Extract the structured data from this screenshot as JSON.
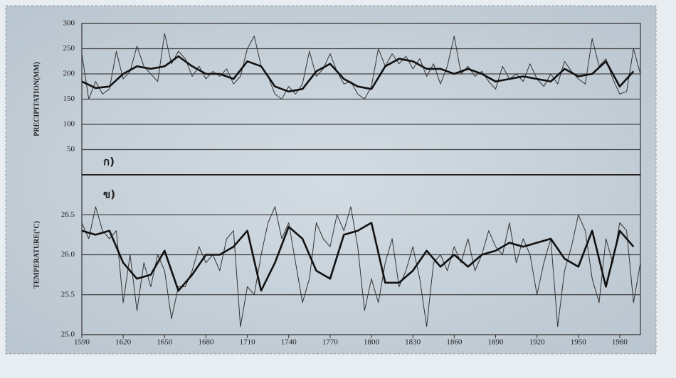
{
  "chart_data": [
    {
      "type": "line",
      "ylabel": "PRECIPITATION(MM)",
      "panel_label": "ก)",
      "xlim": [
        1590,
        1995
      ],
      "ylim": [
        0,
        300
      ],
      "yticks": [
        300,
        250,
        200,
        150,
        100,
        50
      ],
      "grid": true,
      "series": [
        {
          "color": "#333333",
          "width": 1,
          "x": [
            1590,
            1595,
            1600,
            1605,
            1610,
            1615,
            1620,
            1625,
            1630,
            1635,
            1640,
            1645,
            1650,
            1655,
            1660,
            1665,
            1670,
            1675,
            1680,
            1685,
            1690,
            1695,
            1700,
            1705,
            1710,
            1715,
            1720,
            1725,
            1730,
            1735,
            1740,
            1745,
            1750,
            1755,
            1760,
            1765,
            1770,
            1775,
            1780,
            1785,
            1790,
            1795,
            1800,
            1805,
            1810,
            1815,
            1820,
            1825,
            1830,
            1835,
            1840,
            1845,
            1850,
            1855,
            1860,
            1865,
            1870,
            1875,
            1880,
            1885,
            1890,
            1895,
            1900,
            1905,
            1910,
            1915,
            1920,
            1925,
            1930,
            1935,
            1940,
            1945,
            1950,
            1955,
            1960,
            1965,
            1970,
            1975,
            1980,
            1985,
            1990,
            1995
          ],
          "values": [
            240,
            150,
            185,
            160,
            170,
            245,
            190,
            205,
            255,
            215,
            200,
            185,
            280,
            220,
            245,
            230,
            195,
            215,
            190,
            205,
            195,
            210,
            180,
            195,
            250,
            275,
            215,
            195,
            160,
            150,
            175,
            160,
            180,
            245,
            195,
            210,
            240,
            205,
            180,
            185,
            160,
            150,
            175,
            250,
            215,
            240,
            220,
            235,
            210,
            230,
            195,
            220,
            180,
            215,
            275,
            200,
            215,
            195,
            205,
            185,
            170,
            215,
            190,
            200,
            185,
            220,
            190,
            175,
            200,
            180,
            225,
            205,
            190,
            180,
            270,
            215,
            230,
            190,
            160,
            165,
            250,
            200
          ]
        },
        {
          "color": "#111111",
          "width": 2.6,
          "x": [
            1590,
            1600,
            1610,
            1620,
            1630,
            1640,
            1650,
            1660,
            1670,
            1680,
            1690,
            1700,
            1710,
            1720,
            1730,
            1740,
            1750,
            1760,
            1770,
            1780,
            1790,
            1800,
            1810,
            1820,
            1830,
            1840,
            1850,
            1860,
            1870,
            1880,
            1890,
            1900,
            1910,
            1920,
            1930,
            1940,
            1950,
            1960,
            1970,
            1980,
            1990
          ],
          "values": [
            185,
            172,
            175,
            200,
            215,
            210,
            215,
            235,
            215,
            200,
            200,
            190,
            225,
            215,
            175,
            165,
            170,
            205,
            220,
            190,
            175,
            170,
            215,
            230,
            225,
            210,
            210,
            200,
            210,
            200,
            185,
            190,
            195,
            190,
            185,
            210,
            195,
            200,
            225,
            175,
            205
          ]
        }
      ]
    },
    {
      "type": "line",
      "ylabel": "TEMPERATURE(°C)",
      "panel_label": "ข)",
      "xlim": [
        1590,
        1995
      ],
      "ylim": [
        25,
        27
      ],
      "yticks": [
        {
          "value": 26.5,
          "label": "26.5"
        },
        {
          "value": 26,
          "label": "26.0"
        },
        {
          "value": 25.5,
          "label": "25.5"
        },
        {
          "value": 25,
          "label": "25.0"
        }
      ],
      "xticks": [
        1590,
        1620,
        1650,
        1680,
        1710,
        1740,
        1770,
        1800,
        1830,
        1860,
        1890,
        1920,
        1950,
        1980
      ],
      "grid": true,
      "series": [
        {
          "color": "#333333",
          "width": 1,
          "x": [
            1590,
            1595,
            1600,
            1605,
            1610,
            1615,
            1620,
            1625,
            1630,
            1635,
            1640,
            1645,
            1650,
            1655,
            1660,
            1665,
            1670,
            1675,
            1680,
            1685,
            1690,
            1695,
            1700,
            1705,
            1710,
            1715,
            1720,
            1725,
            1730,
            1735,
            1740,
            1745,
            1750,
            1755,
            1760,
            1765,
            1770,
            1775,
            1780,
            1785,
            1790,
            1795,
            1800,
            1805,
            1810,
            1815,
            1820,
            1825,
            1830,
            1835,
            1840,
            1845,
            1850,
            1855,
            1860,
            1865,
            1870,
            1875,
            1880,
            1885,
            1890,
            1895,
            1900,
            1905,
            1910,
            1915,
            1920,
            1925,
            1930,
            1935,
            1940,
            1945,
            1950,
            1955,
            1960,
            1965,
            1970,
            1975,
            1980,
            1985,
            1990,
            1995
          ],
          "values": [
            26.4,
            26.2,
            26.6,
            26.3,
            26.2,
            26.3,
            25.4,
            26.0,
            25.3,
            25.9,
            25.6,
            26.0,
            25.8,
            25.2,
            25.6,
            25.6,
            25.8,
            26.1,
            25.9,
            26.0,
            25.8,
            26.2,
            26.3,
            25.1,
            25.6,
            25.5,
            26.0,
            26.4,
            26.6,
            26.2,
            26.4,
            25.9,
            25.4,
            25.7,
            26.4,
            26.2,
            26.1,
            26.5,
            26.3,
            26.6,
            26.1,
            25.3,
            25.7,
            25.4,
            25.9,
            26.2,
            25.6,
            25.8,
            26.1,
            25.7,
            25.1,
            25.9,
            26.0,
            25.8,
            26.1,
            25.9,
            26.2,
            25.8,
            26.0,
            26.3,
            26.1,
            26.0,
            26.4,
            25.9,
            26.2,
            26.0,
            25.5,
            25.9,
            26.2,
            25.1,
            25.8,
            26.1,
            26.5,
            26.3,
            25.7,
            25.4,
            26.2,
            25.9,
            26.4,
            26.3,
            25.4,
            25.9
          ]
        },
        {
          "color": "#111111",
          "width": 2.6,
          "x": [
            1590,
            1600,
            1610,
            1620,
            1630,
            1640,
            1650,
            1660,
            1670,
            1680,
            1690,
            1700,
            1710,
            1720,
            1730,
            1740,
            1750,
            1760,
            1770,
            1780,
            1790,
            1800,
            1810,
            1820,
            1830,
            1840,
            1850,
            1860,
            1870,
            1880,
            1890,
            1900,
            1910,
            1920,
            1930,
            1940,
            1950,
            1960,
            1970,
            1980,
            1990
          ],
          "values": [
            26.3,
            26.25,
            26.3,
            25.9,
            25.7,
            25.75,
            26.05,
            25.55,
            25.75,
            26.0,
            26.0,
            26.1,
            26.3,
            25.55,
            25.9,
            26.35,
            26.2,
            25.8,
            25.7,
            26.25,
            26.3,
            26.4,
            25.65,
            25.65,
            25.8,
            26.05,
            25.85,
            26.0,
            25.85,
            26.0,
            26.05,
            26.15,
            26.1,
            26.15,
            26.2,
            25.95,
            25.85,
            26.3,
            25.6,
            26.3,
            26.1
          ]
        }
      ]
    }
  ]
}
